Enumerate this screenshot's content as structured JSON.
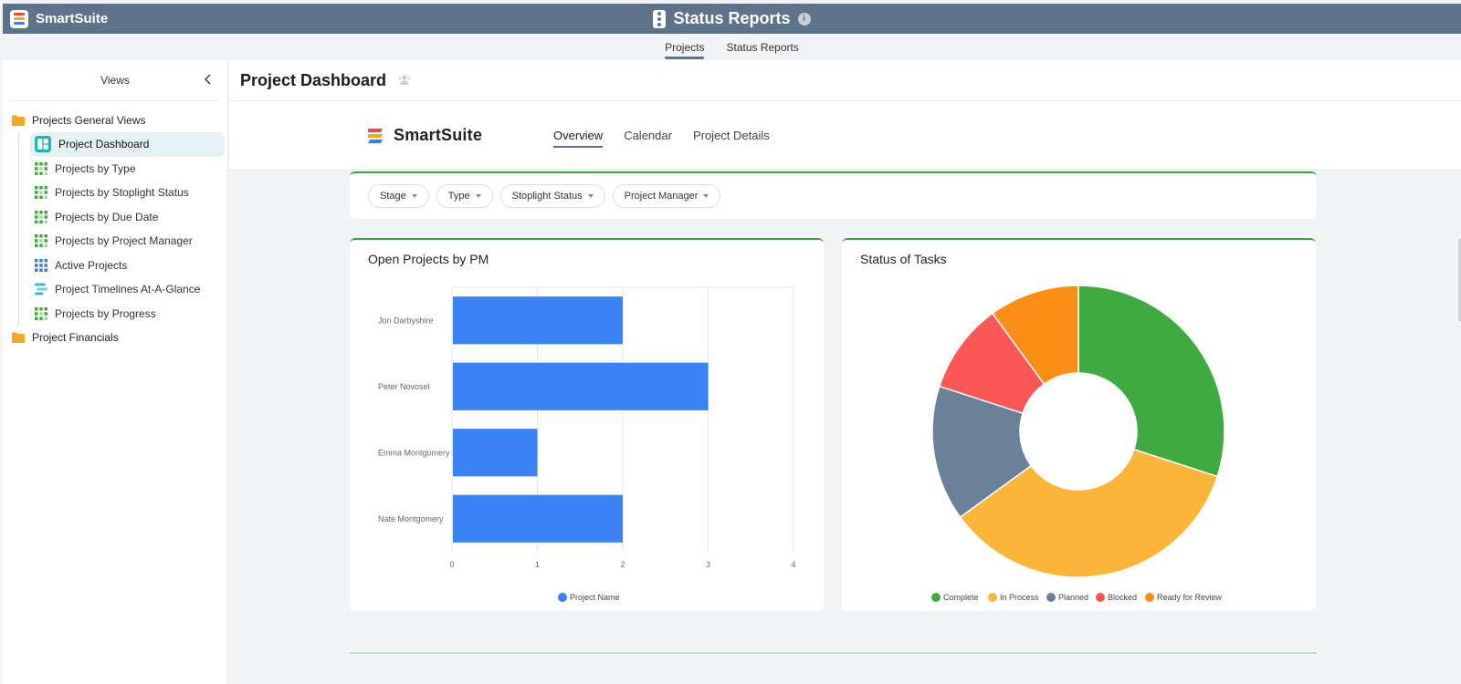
{
  "app": {
    "brand_name": "SmartSuite",
    "title": "Status Reports",
    "info_glyph": "i",
    "brand_colors": [
      "#e8493f",
      "#f5a623",
      "#3b7ddd"
    ]
  },
  "subtabs": [
    {
      "label": "Projects",
      "active": true
    },
    {
      "label": "Status Reports",
      "active": false
    }
  ],
  "sidebar": {
    "title": "Views",
    "folders": [
      {
        "label": "Projects General Views",
        "items": [
          {
            "label": "Project Dashboard",
            "icon": "dashboard-icon",
            "active": true
          },
          {
            "label": "Projects by Type",
            "icon": "grid-view-icon"
          },
          {
            "label": "Projects by Stoplight Status",
            "icon": "grid-view-icon"
          },
          {
            "label": "Projects by Due Date",
            "icon": "grid-view-icon"
          },
          {
            "label": "Projects by Project Manager",
            "icon": "grid-view-icon"
          },
          {
            "label": "Active Projects",
            "icon": "grid-view-blue-icon"
          },
          {
            "label": "Project Timelines At-A-Glance",
            "icon": "timeline-icon"
          },
          {
            "label": "Projects by Progress",
            "icon": "grid-view-icon"
          }
        ]
      },
      {
        "label": "Project Financials",
        "items": []
      }
    ]
  },
  "page": {
    "title": "Project Dashboard"
  },
  "dashboard": {
    "logo_name": "SmartSuite",
    "tabs": [
      {
        "label": "Overview",
        "active": true
      },
      {
        "label": "Calendar",
        "active": false
      },
      {
        "label": "Project Details",
        "active": false
      }
    ],
    "filters": [
      "Stage",
      "Type",
      "Stoplight Status",
      "Project Manager"
    ]
  },
  "chart_data": [
    {
      "type": "bar",
      "orientation": "horizontal",
      "title": "Open Projects by PM",
      "categories": [
        "Jon Darbyshire",
        "Peter Novosel",
        "Emma Montgomery",
        "Nate Montgomery"
      ],
      "series": [
        {
          "name": "Project Name",
          "values": [
            2,
            3,
            1,
            2
          ],
          "color": "#3b82f6"
        }
      ],
      "xlim": [
        0,
        4
      ],
      "xticks": [
        0,
        1,
        2,
        3,
        4
      ],
      "grid": true,
      "legend": "bottom"
    },
    {
      "type": "pie",
      "donut": true,
      "title": "Status of Tasks",
      "slices": [
        {
          "label": "Complete",
          "value": 30,
          "color": "#3faa3f"
        },
        {
          "label": "In Process",
          "value": 35,
          "color": "#fbb63a"
        },
        {
          "label": "Planned",
          "value": 15,
          "color": "#6b8199"
        },
        {
          "label": "Blocked",
          "value": 10,
          "color": "#fb5757"
        },
        {
          "label": "Ready for Review",
          "value": 10,
          "color": "#fb8e16"
        }
      ],
      "legend": "bottom"
    }
  ]
}
